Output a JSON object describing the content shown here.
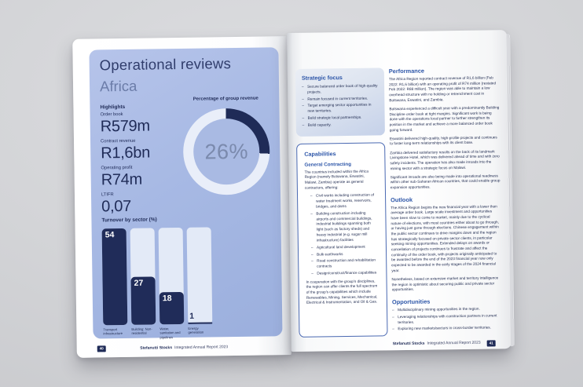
{
  "left_page": {
    "title": "Operational reviews",
    "subtitle": "Africa",
    "highlights_label": "Highlights",
    "metrics": [
      {
        "label": "Order book",
        "value": "R579m"
      },
      {
        "label": "Contract revenue",
        "value": "R1,6bn"
      },
      {
        "label": "Operating profit",
        "value": "R74m"
      },
      {
        "label": "LTIFR",
        "value": "0,07"
      }
    ],
    "donut_label": "Percentage of group revenue",
    "donut_center": "26%",
    "bar_title": "Turnover by sector (%)",
    "footer": {
      "page_number": "40",
      "brand": "Stefanutti Stocks",
      "report": "Integrated Annual Report 2023"
    }
  },
  "right_page": {
    "strategic_focus": {
      "title": "Strategic focus",
      "bullets": [
        "Secure balanced order book of high-quality projects.",
        "Remain focused in current territories.",
        "Target emerging sector opportunities in new territories.",
        "Build strategic local partnerships.",
        "Build capacity."
      ]
    },
    "capabilities": {
      "title": "Capabilities",
      "subtitle": "General Contracting",
      "intro": "The countries included within the Africa Region (namely Botswana, Eswatini, Malawi, Zambia) operate as general contractors, offering:",
      "bullets": [
        "Civil works including construction of water treatment works, reservoirs, bridges, and dams",
        "Building construction including airports and commercial buildings, industrial buildings spanning both light (such as factory sheds) and heavy industrial (e.g. sugar mill infrastructure) facilities",
        "Agricultural land development",
        "Bulk earthworks",
        "Road construction and rehabilitation contracts",
        "Design/construct/finance capabilities"
      ],
      "outro": "In cooperation with the group's disciplines, the region can offer clients the full spectrum of the group's capabilities which include Renewables, Mining, Services, Mechanical, Electrical & Instrumentation, and Oil & Gas."
    },
    "performance": {
      "title": "Performance",
      "paragraphs": [
        "The Africa Region reported contract revenue of R1,6 billion (Feb 2022: R1,6 billion) with an operating profit of R74 million (restated Feb 2022: R88 million). The region was able to maintain a low overhead structure with no holding or retrenchment cost in Botswana, Eswatini, and Zambia.",
        "Botswana experienced a difficult year with a predominantly Building Discipline order book at tight margins. Significant work is being done with the operations local partner to further strengthen its position in the market and achieve a more balanced order book going forward.",
        "Eswatini delivered high-quality, high-profile projects and continues to foster long-term relationships with its client base.",
        "Zambia delivered satisfactory results on the back of its landmark Livingstone Hotel, which was delivered ahead of time and with zero safety incidents. The operation has also made inroads into the mining sector with a strategic focus on Malawi.",
        "Significant inroads are also being made into operational readiness within other sub-Saharan African countries, that could enable group expansion opportunities."
      ]
    },
    "outlook": {
      "title": "Outlook",
      "paragraphs": [
        "The Africa Region begins the new financial year with a lower than average order book. Large scale investment and opportunities have been slow to come to market, mainly due to the cyclical nature of elections, with most countries either about to go through, or having just gone through elections. Chinese engagement within the public sector continues to drive margins down and the region has strategically focused on private sector clients, in particular seeking mining opportunities. Extended delays on awards or cancellation of projects continues to frustrate and affect the continuity of the order book, with projects originally anticipated to be awarded before the end of the 2023 financial year now only expected to be awarded in the early stages of the 2024 financial year.",
        "Nonetheless, based on extensive market and territory intelligence the region is optimistic about securing public and private sector opportunities."
      ]
    },
    "opportunities": {
      "title": "Opportunities",
      "bullets": [
        "Multidisciplinary mining opportunities in the region.",
        "Leveraging relationships with construction partners in current territories.",
        "Exploring new markets/sectors in cross-border territories."
      ]
    },
    "footer": {
      "brand": "Stefanutti Stocks",
      "report": "Integrated Annual Report 2023",
      "page_number": "41"
    }
  },
  "colors": {
    "panel_blue": "#a7b9e4",
    "navy": "#1f2b57",
    "heading_blue": "#2c55a8",
    "bar_track": "#e3eaf7"
  },
  "chart_data": [
    {
      "type": "pie",
      "subtype": "donut",
      "title": "Percentage of group revenue",
      "values": [
        {
          "label": "Africa share of group revenue",
          "value": 26
        }
      ],
      "center_label": "26%",
      "colors": {
        "fill": "#1f2b57",
        "track": "#e9eef9"
      }
    },
    {
      "type": "bar",
      "title": "Turnover by sector (%)",
      "categories": [
        "Transport infrastructure",
        "Building: Non-residential",
        "Water, sanitation and pipelines",
        "Energy generation"
      ],
      "values": [
        54,
        27,
        18,
        1
      ],
      "ylim": [
        0,
        54
      ],
      "colors": {
        "fill": "#202c59",
        "track": "#e3eaf7"
      }
    }
  ]
}
